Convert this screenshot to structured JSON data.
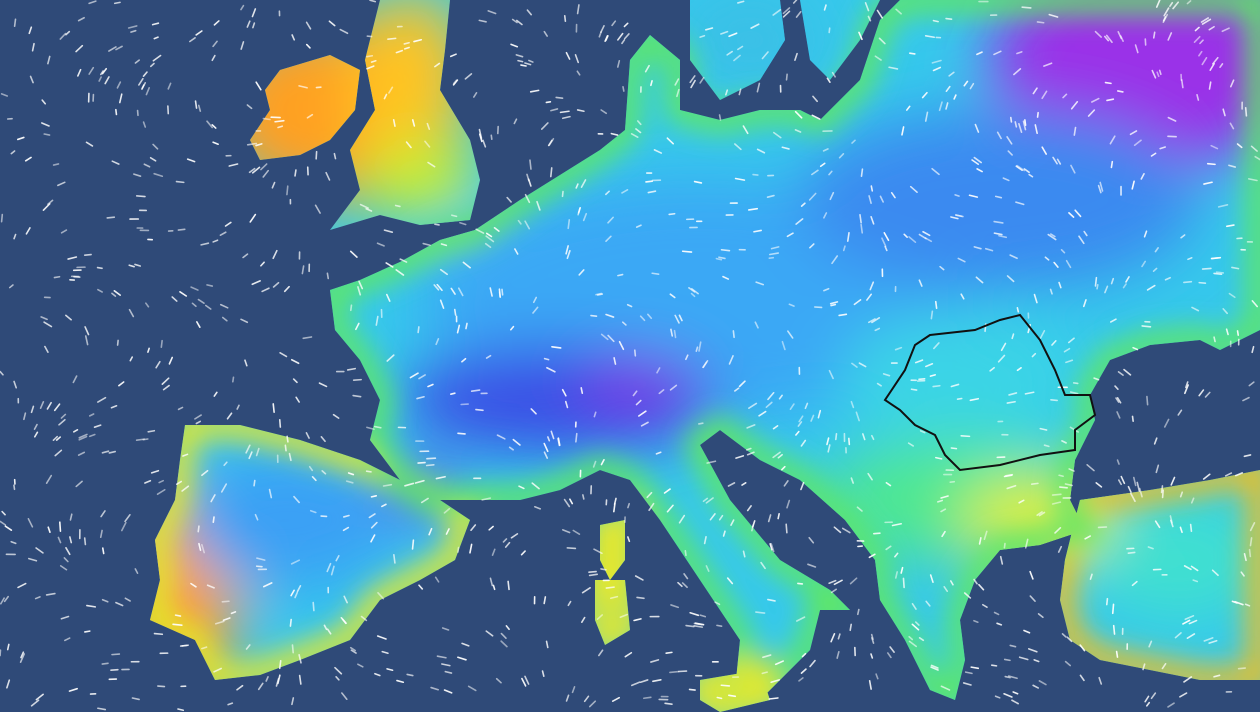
{
  "map": {
    "layers": [
      "temperature-field",
      "wind-particles",
      "country-border-highlight"
    ],
    "colors": {
      "sea": "#2f4a78",
      "cold_extreme": "#8a2be2",
      "cold": "#3a4fe6",
      "cool": "#3aa0f5",
      "mild": "#36d6e8",
      "moderate": "#3ce87a",
      "warm": "#e6f02a",
      "hot": "#ffa020",
      "very_hot": "#ff5a14",
      "wind_particles": "#ffffff",
      "border_highlight": "#111111"
    }
  }
}
